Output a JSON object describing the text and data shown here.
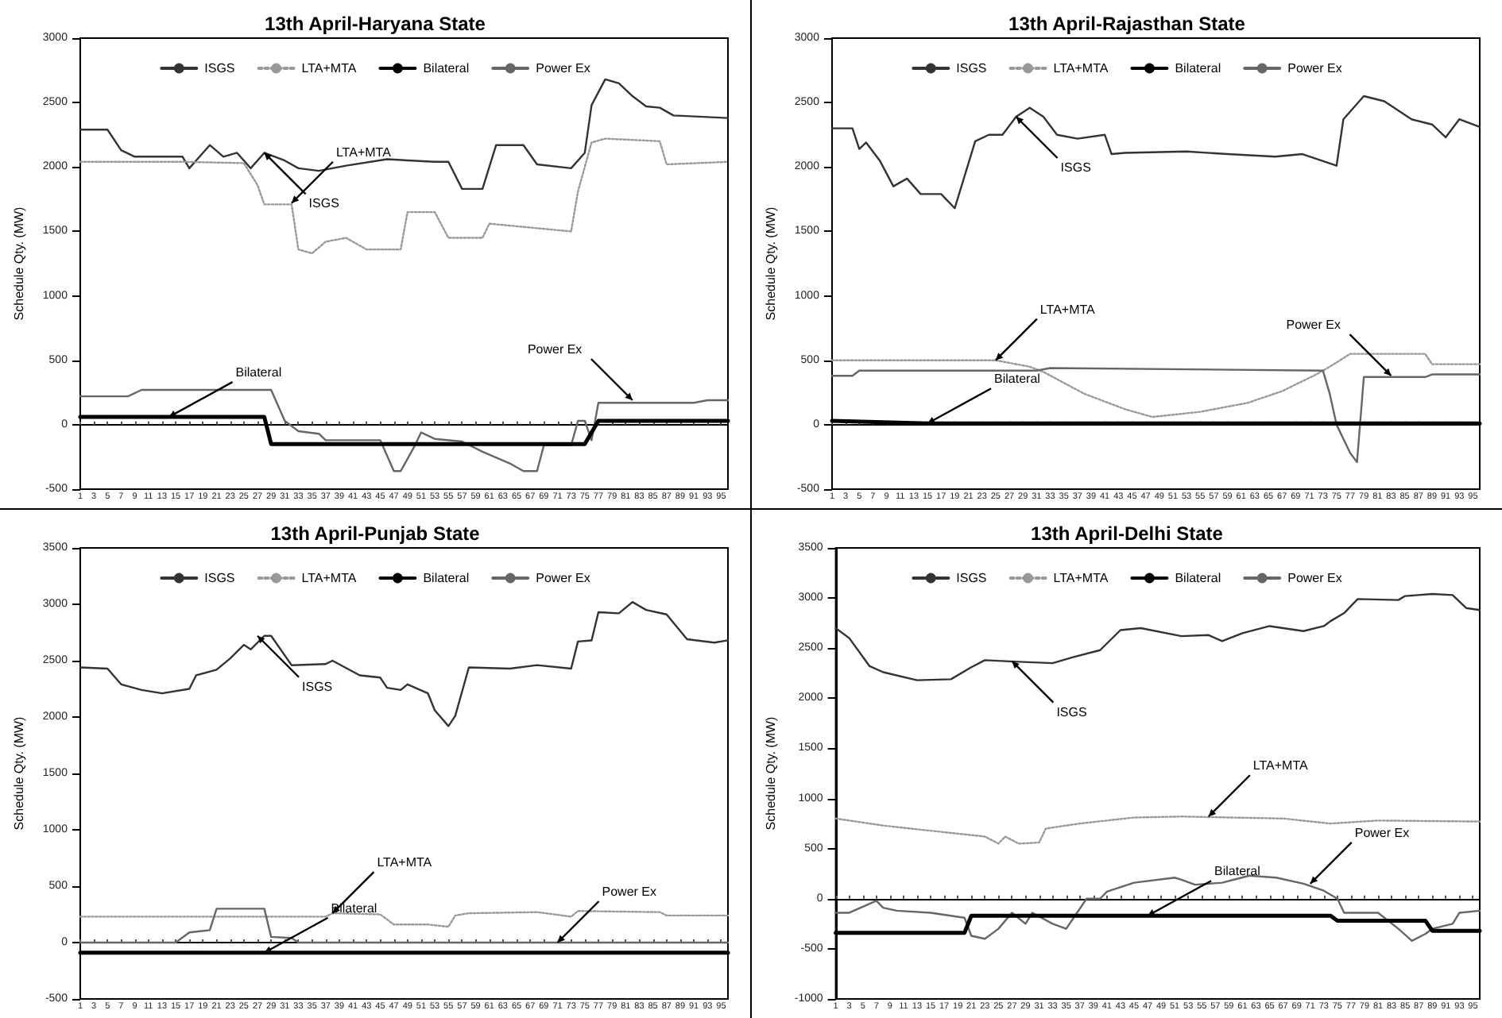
{
  "chart_data": [
    {
      "type": "line",
      "title": "13th April-Haryana State",
      "ylabel": "Schedule Qty. (MW)",
      "legend": "top",
      "marker": "none",
      "xlim": [
        1,
        96
      ],
      "xticks": [
        1,
        3,
        5,
        7,
        9,
        11,
        13,
        15,
        17,
        19,
        21,
        23,
        25,
        27,
        29,
        31,
        33,
        35,
        37,
        39,
        41,
        43,
        45,
        47,
        49,
        51,
        53,
        55,
        57,
        59,
        61,
        63,
        65,
        67,
        69,
        71,
        73,
        75,
        77,
        79,
        81,
        83,
        85,
        87,
        89,
        91,
        93,
        95
      ],
      "ylim": [
        -500,
        3000
      ],
      "yticks": [
        -500,
        0,
        500,
        1000,
        1500,
        2000,
        2500,
        3000
      ],
      "series": [
        {
          "name": "ISGS",
          "color": "#333333",
          "line_style": "solid",
          "x": [
            1,
            5,
            7,
            9,
            16,
            17,
            20,
            22,
            24,
            26,
            28,
            31,
            33,
            36,
            40,
            46,
            53,
            55,
            57,
            60,
            62,
            66,
            68,
            73,
            75,
            76,
            78,
            80,
            82,
            84,
            86,
            88,
            96
          ],
          "values": [
            2290,
            2290,
            2130,
            2080,
            2080,
            1990,
            2170,
            2080,
            2110,
            1990,
            2110,
            2050,
            1990,
            1970,
            2010,
            2060,
            2040,
            2040,
            1830,
            1830,
            2170,
            2170,
            2020,
            1990,
            2110,
            2480,
            2680,
            2650,
            2550,
            2470,
            2460,
            2400,
            2380
          ]
        },
        {
          "name": "LTA+MTA",
          "color": "#999999",
          "line_style": "dotted",
          "x": [
            1,
            16,
            25,
            27,
            28,
            32,
            33,
            35,
            37,
            40,
            43,
            48,
            49,
            53,
            55,
            60,
            61,
            73,
            74,
            76,
            78,
            86,
            87,
            96
          ],
          "values": [
            2040,
            2040,
            2030,
            1860,
            1710,
            1710,
            1360,
            1330,
            1420,
            1450,
            1360,
            1360,
            1650,
            1650,
            1450,
            1450,
            1560,
            1500,
            1810,
            2190,
            2220,
            2200,
            2020,
            2040
          ]
        },
        {
          "name": "Bilateral",
          "color": "#000000",
          "line_style": "solid",
          "x": [
            1,
            28,
            29,
            75,
            77,
            96
          ],
          "values": [
            60,
            60,
            -150,
            -150,
            30,
            30
          ]
        },
        {
          "name": "Power Ex",
          "color": "#666666",
          "line_style": "solid",
          "x": [
            1,
            8,
            10,
            29,
            31,
            33,
            36,
            37,
            45,
            47,
            48,
            50,
            51,
            53,
            57,
            60,
            64,
            66,
            68,
            69,
            73,
            74,
            75,
            76,
            77,
            91,
            93,
            96
          ],
          "values": [
            220,
            220,
            270,
            270,
            30,
            -50,
            -70,
            -120,
            -120,
            -360,
            -360,
            -170,
            -60,
            -110,
            -130,
            -210,
            -300,
            -360,
            -360,
            -160,
            -160,
            30,
            30,
            -120,
            170,
            170,
            190,
            190
          ]
        }
      ],
      "annotations": [
        {
          "text": "ISGS",
          "x": 28,
          "y": 2110
        },
        {
          "text": "LTA+MTA",
          "x": 32,
          "y": 1720
        },
        {
          "text": "Bilateral",
          "x": 14,
          "y": 60
        },
        {
          "text": "Power Ex",
          "x": 82,
          "y": 190
        }
      ]
    },
    {
      "type": "line",
      "title": "13th April-Rajasthan State",
      "ylabel": "Schedule Qty. (MW)",
      "legend": "top",
      "marker": "none",
      "xlim": [
        1,
        96
      ],
      "xticks": [
        1,
        3,
        5,
        7,
        9,
        11,
        13,
        15,
        17,
        19,
        21,
        23,
        25,
        27,
        29,
        31,
        33,
        35,
        37,
        39,
        41,
        43,
        45,
        47,
        49,
        51,
        53,
        55,
        57,
        59,
        61,
        63,
        65,
        67,
        69,
        71,
        73,
        75,
        77,
        79,
        81,
        83,
        85,
        87,
        89,
        91,
        93,
        95
      ],
      "ylim": [
        -500,
        3000
      ],
      "yticks": [
        -500,
        0,
        500,
        1000,
        1500,
        2000,
        2500,
        3000
      ],
      "series": [
        {
          "name": "ISGS",
          "color": "#333333",
          "line_style": "solid",
          "x": [
            1,
            4,
            5,
            6,
            8,
            10,
            12,
            14,
            17,
            19,
            22,
            24,
            26,
            28,
            30,
            32,
            34,
            37,
            41,
            42,
            44,
            53,
            59,
            66,
            70,
            75,
            76,
            79,
            82,
            86,
            89,
            91,
            93,
            95,
            96
          ],
          "values": [
            2300,
            2300,
            2140,
            2190,
            2050,
            1850,
            1910,
            1790,
            1790,
            1680,
            2200,
            2250,
            2250,
            2390,
            2460,
            2390,
            2250,
            2220,
            2250,
            2100,
            2110,
            2120,
            2100,
            2080,
            2100,
            2010,
            2370,
            2550,
            2510,
            2370,
            2330,
            2230,
            2370,
            2330,
            2310
          ]
        },
        {
          "name": "LTA+MTA",
          "color": "#999999",
          "line_style": "dotted",
          "x": [
            1,
            25,
            30,
            32,
            38,
            44,
            48,
            55,
            62,
            67,
            72,
            74,
            77,
            88,
            89,
            96
          ],
          "values": [
            500,
            500,
            450,
            410,
            240,
            120,
            60,
            100,
            170,
            260,
            390,
            450,
            550,
            550,
            470,
            470
          ]
        },
        {
          "name": "Bilateral",
          "color": "#000000",
          "line_style": "solid",
          "x": [
            1,
            15,
            96
          ],
          "values": [
            30,
            10,
            10
          ]
        },
        {
          "name": "Power Ex",
          "color": "#666666",
          "line_style": "solid",
          "x": [
            1,
            4,
            5,
            31,
            33,
            73,
            74,
            75,
            77,
            78,
            79,
            88,
            89,
            96
          ],
          "values": [
            380,
            380,
            420,
            420,
            440,
            420,
            240,
            0,
            -220,
            -290,
            370,
            370,
            390,
            390
          ]
        }
      ],
      "annotations": [
        {
          "text": "ISGS",
          "x": 28,
          "y": 2390
        },
        {
          "text": "LTA+MTA",
          "x": 25,
          "y": 500
        },
        {
          "text": "Bilateral",
          "x": 15,
          "y": 10
        },
        {
          "text": "Power Ex",
          "x": 83,
          "y": 380
        }
      ]
    },
    {
      "type": "line",
      "title": "13th April-Punjab State",
      "ylabel": "Schedule Qty. (MW)",
      "legend": "top",
      "marker": "none",
      "xlim": [
        1,
        96
      ],
      "xticks": [
        1,
        3,
        5,
        7,
        9,
        11,
        13,
        15,
        17,
        19,
        21,
        23,
        25,
        27,
        29,
        31,
        33,
        35,
        37,
        39,
        41,
        43,
        45,
        47,
        49,
        51,
        53,
        55,
        57,
        59,
        61,
        63,
        65,
        67,
        69,
        71,
        73,
        75,
        77,
        79,
        81,
        83,
        85,
        87,
        89,
        91,
        93,
        95
      ],
      "ylim": [
        -500,
        3500
      ],
      "yticks": [
        -500,
        0,
        500,
        1000,
        1500,
        2000,
        2500,
        3000,
        3500
      ],
      "series": [
        {
          "name": "ISGS",
          "color": "#333333",
          "line_style": "solid",
          "x": [
            1,
            5,
            7,
            10,
            13,
            17,
            18,
            21,
            23,
            25,
            26,
            28,
            29,
            32,
            37,
            38,
            42,
            45,
            46,
            48,
            49,
            52,
            53,
            55,
            56,
            58,
            64,
            68,
            73,
            74,
            76,
            77,
            80,
            82,
            84,
            87,
            90,
            94,
            96
          ],
          "values": [
            2440,
            2430,
            2290,
            2240,
            2210,
            2250,
            2370,
            2420,
            2520,
            2640,
            2600,
            2720,
            2720,
            2460,
            2470,
            2500,
            2370,
            2350,
            2260,
            2240,
            2290,
            2210,
            2060,
            1920,
            2010,
            2440,
            2430,
            2460,
            2430,
            2670,
            2680,
            2930,
            2920,
            3020,
            2950,
            2910,
            2690,
            2660,
            2680
          ]
        },
        {
          "name": "LTA+MTA",
          "color": "#999999",
          "line_style": "dotted",
          "x": [
            1,
            21,
            37,
            38,
            45,
            47,
            52,
            55,
            56,
            58,
            68,
            73,
            74,
            86,
            87,
            96
          ],
          "values": [
            230,
            230,
            230,
            260,
            250,
            160,
            160,
            140,
            240,
            260,
            270,
            230,
            280,
            270,
            240,
            240
          ]
        },
        {
          "name": "Bilateral",
          "color": "#000000",
          "line_style": "solid",
          "x": [
            1,
            96
          ],
          "values": [
            -90,
            -90
          ]
        },
        {
          "name": "Power Ex",
          "color": "#666666",
          "line_style": "solid",
          "x": [
            1,
            15,
            17,
            20,
            21,
            28,
            29,
            32,
            33,
            96
          ],
          "values": [
            0,
            0,
            90,
            110,
            300,
            300,
            50,
            40,
            0,
            0
          ]
        }
      ],
      "annotations": [
        {
          "text": "ISGS",
          "x": 27,
          "y": 2720
        },
        {
          "text": "LTA+MTA",
          "x": 38,
          "y": 260
        },
        {
          "text": "Bilateral",
          "x": 28,
          "y": -90
        },
        {
          "text": "Power Ex",
          "x": 71,
          "y": 0
        }
      ]
    },
    {
      "type": "line",
      "title": "13th April-Delhi State",
      "ylabel": "Schedule Qty. (MW)",
      "legend": "top",
      "marker": "none",
      "xlim": [
        1,
        96
      ],
      "xticks": [
        1,
        3,
        5,
        7,
        9,
        11,
        13,
        15,
        17,
        19,
        21,
        23,
        25,
        27,
        29,
        31,
        33,
        35,
        37,
        39,
        41,
        43,
        45,
        47,
        49,
        51,
        53,
        55,
        57,
        59,
        61,
        63,
        65,
        67,
        69,
        71,
        73,
        75,
        77,
        79,
        81,
        83,
        85,
        87,
        89,
        91,
        93,
        95
      ],
      "ylim": [
        -1000,
        3500
      ],
      "yticks": [
        -1000,
        -500,
        0,
        500,
        1000,
        1500,
        2000,
        2500,
        3000,
        3500
      ],
      "series": [
        {
          "name": "ISGS",
          "color": "#333333",
          "line_style": "solid",
          "x": [
            1,
            3,
            6,
            8,
            13,
            18,
            21,
            23,
            26,
            33,
            36,
            40,
            43,
            46,
            52,
            56,
            58,
            61,
            65,
            70,
            73,
            74,
            76,
            78,
            84,
            85,
            89,
            92,
            94,
            96
          ],
          "values": [
            2700,
            2600,
            2320,
            2260,
            2180,
            2190,
            2310,
            2380,
            2370,
            2350,
            2410,
            2480,
            2680,
            2700,
            2620,
            2630,
            2570,
            2650,
            2720,
            2670,
            2720,
            2770,
            2850,
            2990,
            2980,
            3020,
            3040,
            3030,
            2900,
            2880
          ]
        },
        {
          "name": "LTA+MTA",
          "color": "#999999",
          "line_style": "dotted",
          "x": [
            1,
            8,
            12,
            23,
            25,
            26,
            28,
            31,
            32,
            37,
            45,
            52,
            67,
            74,
            81,
            96
          ],
          "values": [
            800,
            730,
            700,
            620,
            550,
            620,
            550,
            560,
            700,
            750,
            810,
            820,
            800,
            750,
            780,
            770
          ]
        },
        {
          "name": "Bilateral",
          "color": "#000000",
          "line_style": "solid",
          "x": [
            1,
            20,
            21,
            74,
            75,
            88,
            89,
            96
          ],
          "values": [
            -340,
            -340,
            -170,
            -170,
            -220,
            -220,
            -320,
            -320
          ]
        },
        {
          "name": "Power Ex",
          "color": "#666666",
          "line_style": "solid",
          "x": [
            1,
            3,
            5,
            7,
            8,
            10,
            15,
            20,
            21,
            23,
            25,
            27,
            29,
            30,
            33,
            35,
            36,
            37,
            38,
            40,
            41,
            45,
            51,
            52,
            54,
            58,
            62,
            66,
            70,
            73,
            75,
            76,
            81,
            84,
            86,
            88,
            89,
            92,
            93,
            96
          ],
          "values": [
            -140,
            -140,
            -80,
            -20,
            -90,
            -120,
            -140,
            -190,
            -370,
            -400,
            -300,
            -140,
            -250,
            -140,
            -250,
            -300,
            -200,
            -100,
            0,
            0,
            70,
            160,
            210,
            190,
            140,
            160,
            230,
            210,
            150,
            80,
            0,
            -140,
            -140,
            -300,
            -420,
            -350,
            -300,
            -250,
            -140,
            -120
          ]
        }
      ],
      "annotations": [
        {
          "text": "ISGS",
          "x": 27,
          "y": 2370
        },
        {
          "text": "LTA+MTA",
          "x": 56,
          "y": 820
        },
        {
          "text": "Bilateral",
          "x": 47,
          "y": -170
        },
        {
          "text": "Power Ex",
          "x": 71,
          "y": 150
        }
      ]
    }
  ]
}
